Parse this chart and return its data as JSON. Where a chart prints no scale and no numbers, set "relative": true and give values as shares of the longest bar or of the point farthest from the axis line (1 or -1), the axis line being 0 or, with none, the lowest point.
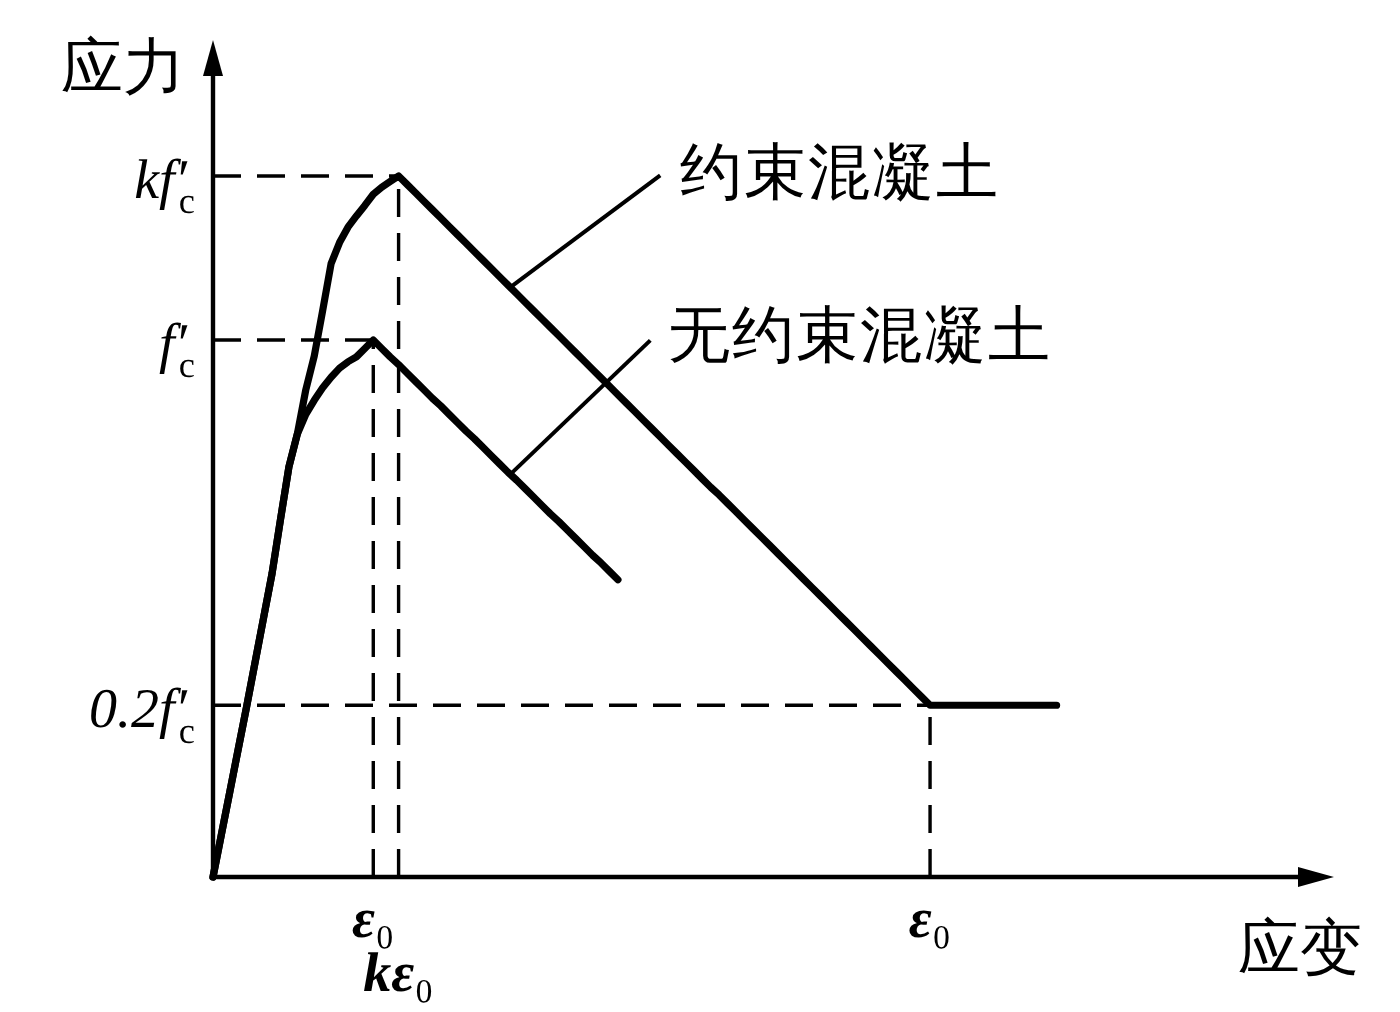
{
  "chart_data": {
    "type": "line",
    "relative": true,
    "xlabel": "应变",
    "ylabel": "应力",
    "line_style": "solid",
    "grid": "x",
    "categories": [
      null,
      null,
      null,
      null,
      null,
      null,
      null,
      null,
      null,
      null,
      null,
      null,
      null,
      null,
      null,
      null,
      null,
      null,
      null,
      "ε₀",
      null,
      null,
      "kε₀",
      null,
      null,
      null,
      null,
      null,
      null,
      null,
      null,
      null,
      null,
      null,
      null,
      null,
      null,
      null,
      null,
      null,
      null,
      null,
      null,
      null,
      null,
      null,
      null,
      null,
      null,
      null,
      null,
      null,
      null,
      null,
      null,
      null,
      null,
      null,
      null,
      null,
      null,
      null,
      null,
      null,
      null,
      null,
      null,
      null,
      null,
      null,
      null,
      null,
      null,
      null,
      null,
      null,
      null,
      null,
      null,
      null,
      null,
      null,
      null,
      null,
      null,
      "ε₀",
      null,
      null,
      null,
      null,
      null,
      null,
      null,
      null,
      null,
      null,
      null,
      null,
      null,
      null,
      null
    ],
    "series": [
      {
        "name": "约束混凝土",
        "color": "#000000",
        "values": [
          0,
          0.061,
          0.122,
          0.183,
          0.244,
          0.307,
          0.37,
          0.433,
          0.51,
          0.585,
          0.632,
          0.695,
          0.743,
          0.808,
          0.875,
          0.905,
          0.927,
          0.943,
          0.958,
          0.974,
          0.984,
          0.992,
          1,
          0.988,
          0.976,
          0.964,
          0.952,
          0.94,
          0.928,
          0.916,
          0.904,
          0.892,
          0.88,
          0.868,
          0.856,
          0.844,
          0.832,
          0.82,
          0.808,
          0.796,
          0.784,
          0.772,
          0.76,
          0.748,
          0.736,
          0.724,
          0.712,
          0.7,
          0.688,
          0.676,
          0.664,
          0.652,
          0.64,
          0.628,
          0.616,
          0.604,
          0.592,
          0.58,
          0.568,
          0.556,
          0.545,
          0.533,
          0.521,
          0.509,
          0.497,
          0.485,
          0.473,
          0.461,
          0.449,
          0.437,
          0.425,
          0.413,
          0.401,
          0.389,
          0.377,
          0.365,
          0.353,
          0.341,
          0.329,
          0.317,
          0.305,
          0.293,
          0.281,
          0.269,
          0.257,
          0.245,
          0.245,
          0.245,
          0.245,
          0.245,
          0.245,
          0.245,
          0.245,
          0.245,
          0.245,
          0.245,
          0.245,
          0.245,
          0.245,
          0.245,
          0.245
        ]
      },
      {
        "name": "无约束混凝土",
        "color": "#000000",
        "values": [
          0,
          0.061,
          0.122,
          0.183,
          0.244,
          0.307,
          0.37,
          0.433,
          0.51,
          0.585,
          0.632,
          0.66,
          0.68,
          0.698,
          0.713,
          0.726,
          0.735,
          0.742,
          0.754,
          0.766,
          0.754,
          0.742,
          0.731,
          0.719,
          0.707,
          0.695,
          0.683,
          0.672,
          0.66,
          0.648,
          0.636,
          0.625,
          0.613,
          0.601,
          0.589,
          0.577,
          0.566,
          0.554,
          0.542,
          0.53,
          0.518,
          0.507,
          0.495,
          0.483,
          0.471,
          0.459,
          0.448,
          0.436,
          0.424,
          null,
          null,
          null,
          null,
          null,
          null,
          null,
          null,
          null,
          null,
          null,
          null,
          null,
          null,
          null,
          null,
          null,
          null,
          null,
          null,
          null,
          null,
          null,
          null,
          null,
          null,
          null,
          null,
          null,
          null,
          null,
          null,
          null,
          null,
          null,
          null,
          null,
          null,
          null,
          null,
          null,
          null,
          null,
          null,
          null,
          null,
          null,
          null,
          null,
          null,
          null,
          null
        ]
      }
    ],
    "ref_lines": [
      {
        "axis": "y",
        "value": 1,
        "label": "kf′$_{c}$",
        "line_style": "dashed"
      },
      {
        "axis": "y",
        "value": 0.766,
        "label": "f′$_{c}$",
        "line_style": "dashed"
      },
      {
        "axis": "y",
        "value": 0.245,
        "label": "0.2f′$_{c}$",
        "line_style": "dashed"
      }
    ]
  }
}
